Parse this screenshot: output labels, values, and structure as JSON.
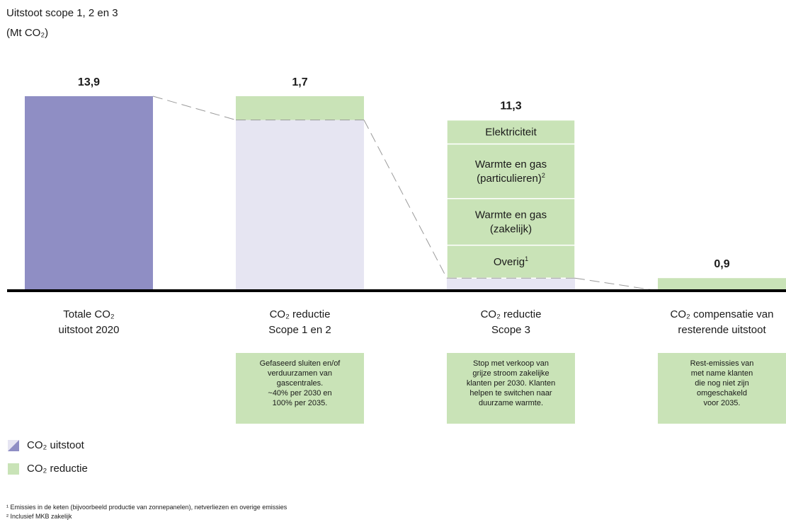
{
  "title_line1": "Uitstoot scope 1, 2 en 3",
  "title_line2": "(Mt CO₂)",
  "colors": {
    "emission": "#8f8ec4",
    "emission_light": "#e6e5f2",
    "reduction": "#c9e3b7",
    "baseline": "#000000",
    "connector": "#9a9a9a"
  },
  "chart_data": {
    "type": "bar",
    "subtype": "waterfall",
    "unit": "Mt CO₂",
    "categories": [
      "Totale CO₂ uitstoot 2020",
      "CO₂ reductie Scope 1 en 2",
      "CO₂ reductie Scope 3",
      "CO₂ compensatie van resterende uitstoot"
    ],
    "values": [
      13.9,
      1.7,
      11.3,
      0.9
    ],
    "value_labels": [
      "13,9",
      "1,7",
      "11,3",
      "0,9"
    ],
    "scope3_segments": [
      {
        "label": "Elektriciteit",
        "sup": ""
      },
      {
        "label": "Warmte en gas\n(particulieren)",
        "sup": "2"
      },
      {
        "label": "Warmte en gas\n(zakelijk)",
        "sup": ""
      },
      {
        "label": "Overig",
        "sup": "1"
      }
    ],
    "category_labels": [
      [
        "Totale CO₂",
        "uitstoot 2020"
      ],
      [
        "CO₂ reductie",
        "Scope 1 en 2"
      ],
      [
        "CO₂ reductie",
        "Scope 3"
      ],
      [
        "CO₂ compensatie van",
        "resterende uitstoot"
      ]
    ],
    "legend": [
      {
        "label": "CO₂ uitstoot",
        "color": "#8f8ec4"
      },
      {
        "label": "CO₂ reductie",
        "color": "#c9e3b7"
      }
    ],
    "grid": false
  },
  "notes": [
    "",
    "Gefaseerd sluiten en/of\nverduurzamen van\ngascentrales.\n~40% per 2030 en\n100% per 2035.",
    "Stop met verkoop van\ngrijze stroom zakelijke\nklanten per 2030. Klanten\nhelpen te switchen naar\nduurzame warmte.",
    "Rest-emissies van\nmet name klanten\ndie nog niet zijn\nomgeschakeld\nvoor 2035."
  ],
  "footnotes": [
    "¹ Emissies in de keten (bijvoorbeeld productie van zonnepanelen), netverliezen en overige emissies",
    "² Inclusief MKB zakelijk"
  ]
}
